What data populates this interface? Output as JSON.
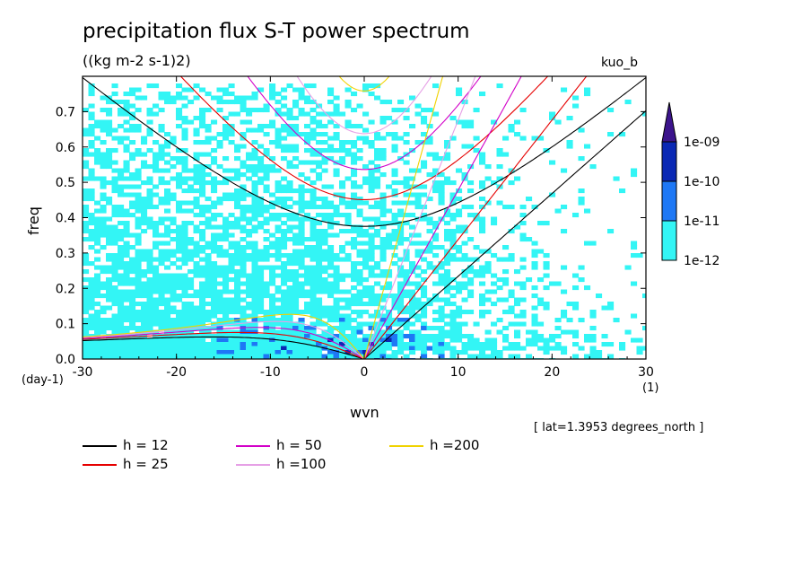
{
  "chart_data": {
    "type": "heatmap",
    "title": "precipitation flux S-T power spectrum",
    "units": "((kg m-2 s-1)2)",
    "run_label": "kuo_b",
    "annotation": "[ lat=1.3953 degrees_north ]",
    "xlabel": "wvn",
    "ylabel": "freq",
    "x_unit": "(1)",
    "y_unit": "(day-1)",
    "xlim": [
      -30,
      30
    ],
    "ylim": [
      0,
      0.8
    ],
    "x_ticks": [
      "-30",
      "-20",
      "-10",
      "0",
      "10",
      "20",
      "30"
    ],
    "y_ticks": [
      "0.0",
      "0.1",
      "0.2",
      "0.3",
      "0.4",
      "0.5",
      "0.6",
      "0.7"
    ],
    "colorbar": {
      "levels": [
        "1e-12",
        "1e-11",
        "1e-10",
        "1e-09"
      ],
      "colors": [
        "#33f5f5",
        "#1e78f5",
        "#0a28b4",
        "#3c148c"
      ]
    },
    "dispersion_curves": [
      {
        "name": "h = 12",
        "h": 12,
        "color": "#000000"
      },
      {
        "name": "h = 25",
        "h": 25,
        "color": "#e60000"
      },
      {
        "name": "h = 50",
        "h": 50,
        "color": "#d200c8"
      },
      {
        "name": "h =100",
        "h": 100,
        "color": "#e6a0e6"
      },
      {
        "name": "h =200",
        "h": 200,
        "color": "#f0d200"
      }
    ]
  }
}
